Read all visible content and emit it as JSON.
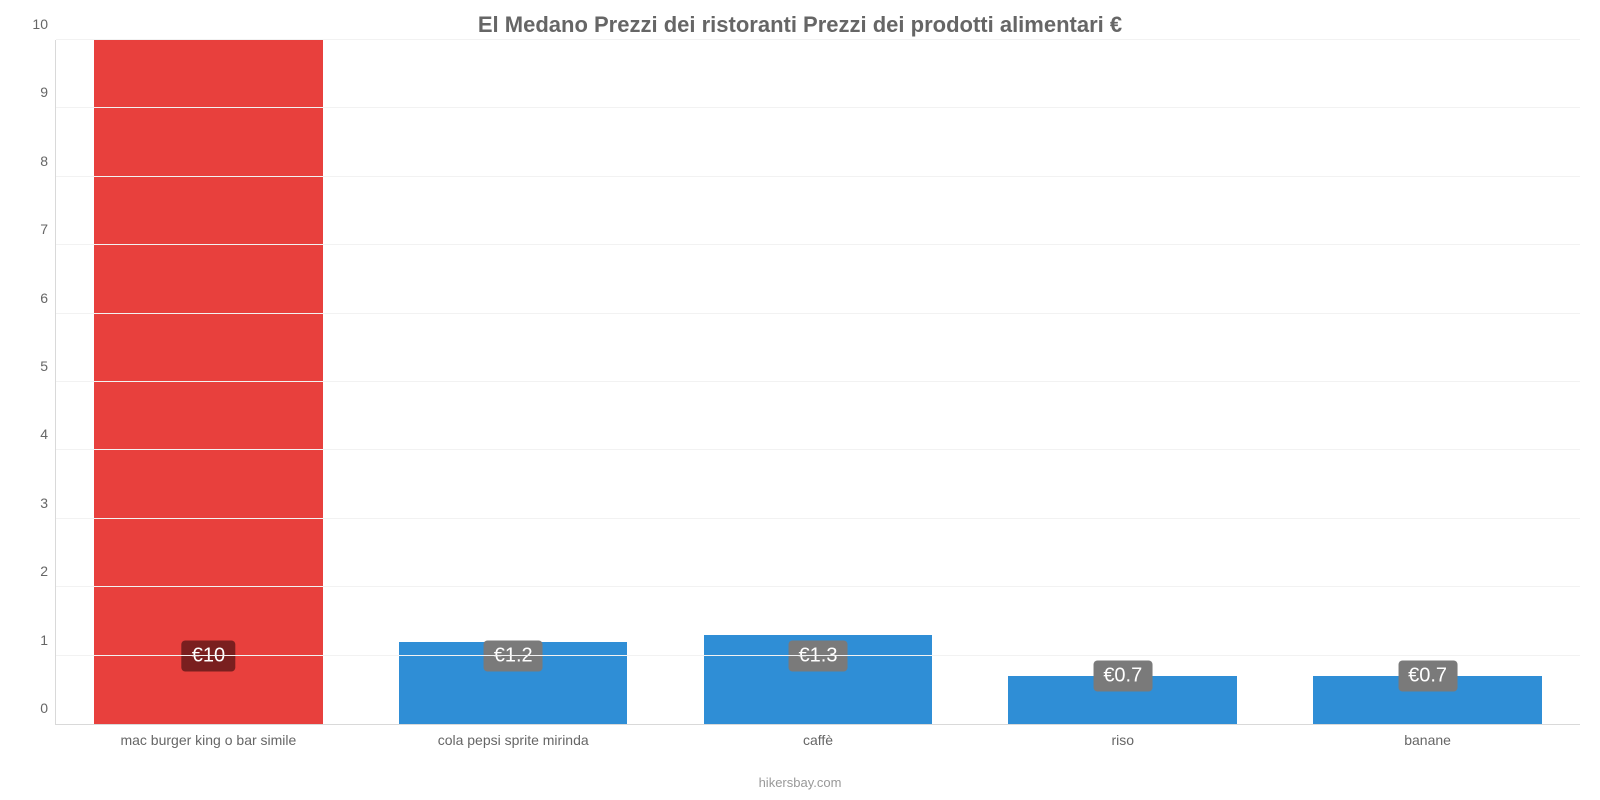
{
  "chart": {
    "type": "bar",
    "title": "El Medano Prezzi dei ristoranti Prezzi dei prodotti alimentari €",
    "title_fontsize": 22,
    "title_color": "#666666",
    "background_color": "#ffffff",
    "grid_color": "#f2f2f2",
    "axis_color": "#d9d9d9",
    "tick_color": "#666666",
    "tick_fontsize": 14,
    "ylim": [
      0,
      10
    ],
    "ytick_step": 1,
    "yticks": [
      0,
      1,
      2,
      3,
      4,
      5,
      6,
      7,
      8,
      9,
      10
    ],
    "bar_width_pct": 75,
    "categories": [
      "mac burger king o bar simile",
      "cola pepsi sprite mirinda",
      "caffè",
      "riso",
      "banane"
    ],
    "values": [
      10,
      1.2,
      1.3,
      0.7,
      0.7
    ],
    "value_labels": [
      "€10",
      "€1.2",
      "€1.3",
      "€0.7",
      "€0.7"
    ],
    "bar_colors": [
      "#e8403d",
      "#2f8ed6",
      "#2f8ed6",
      "#2f8ed6",
      "#2f8ed6"
    ],
    "label_bg_colors": [
      "#7a1f1f",
      "#7a7a7a",
      "#7a7a7a",
      "#7a7a7a",
      "#7a7a7a"
    ],
    "label_fontsize": 20,
    "label_center_value": 1,
    "footer": "hikersbay.com",
    "footer_color": "#999999",
    "footer_fontsize": 13
  }
}
